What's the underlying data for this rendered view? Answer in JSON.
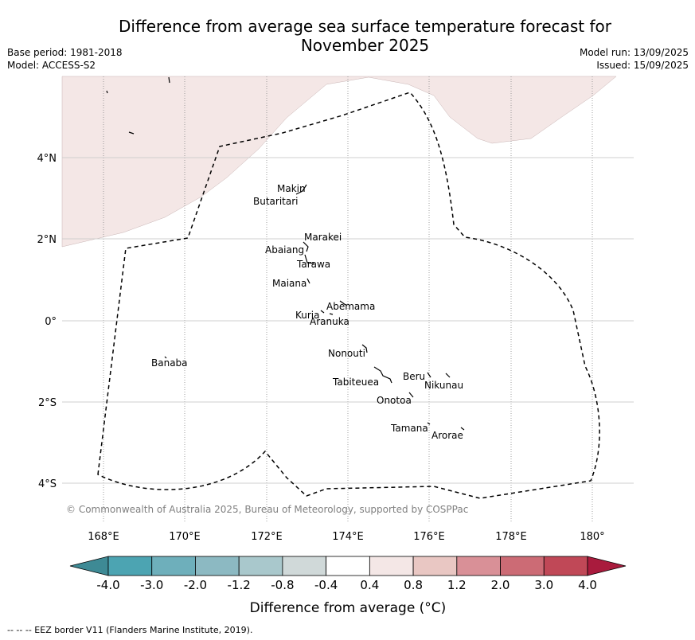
{
  "title": "Difference from average sea surface temperature forecast for November 2025",
  "meta_left": [
    "Base period: 1981-2018",
    "Model: ACCESS-S2"
  ],
  "meta_right": [
    "Model run: 13/09/2025",
    "Issued: 15/09/2025"
  ],
  "copyright": "© Commonwealth of Australia 2025, Bureau of Meteorology, supported by COSPPac",
  "lon_ticks": [
    "168°E",
    "170°E",
    "172°E",
    "174°E",
    "176°E",
    "178°E",
    "180°"
  ],
  "lat_ticks": [
    "4°N",
    "2°N",
    "0°",
    "2°S",
    "4°S"
  ],
  "islands": [
    {
      "name": "Makin"
    },
    {
      "name": "Butaritari"
    },
    {
      "name": "Marakei"
    },
    {
      "name": "Abaiang"
    },
    {
      "name": "Tarawa"
    },
    {
      "name": "Maiana"
    },
    {
      "name": "Abemama"
    },
    {
      "name": "Kuria"
    },
    {
      "name": "Aranuka"
    },
    {
      "name": "Banaba"
    },
    {
      "name": "Nonouti"
    },
    {
      "name": "Beru"
    },
    {
      "name": "Tabiteuea"
    },
    {
      "name": "Nikunau"
    },
    {
      "name": "Onotoa"
    },
    {
      "name": "Tamana"
    },
    {
      "name": "Arorae"
    }
  ],
  "colorbar": {
    "labels": [
      "-4.0",
      "-3.0",
      "-2.0",
      "-1.2",
      "-0.8",
      "-0.4",
      "0.4",
      "0.8",
      "1.2",
      "2.0",
      "3.0",
      "4.0"
    ],
    "colors": [
      "#3e8a95",
      "#4ca4b2",
      "#6eafbb",
      "#8cb9c2",
      "#a9c8cc",
      "#d0d9d9",
      "#ffffff",
      "#f4e7e6",
      "#e9c7c3",
      "#d99097",
      "#cc6b75",
      "#c04857",
      "#a91b3d"
    ],
    "label": "Difference from average (°C)"
  },
  "legend_note": "-- -- -- EEZ border V11 (Flanders Marine Institute, 2019).",
  "shading_color": "#f4e7e6",
  "eez_color": "#000000"
}
